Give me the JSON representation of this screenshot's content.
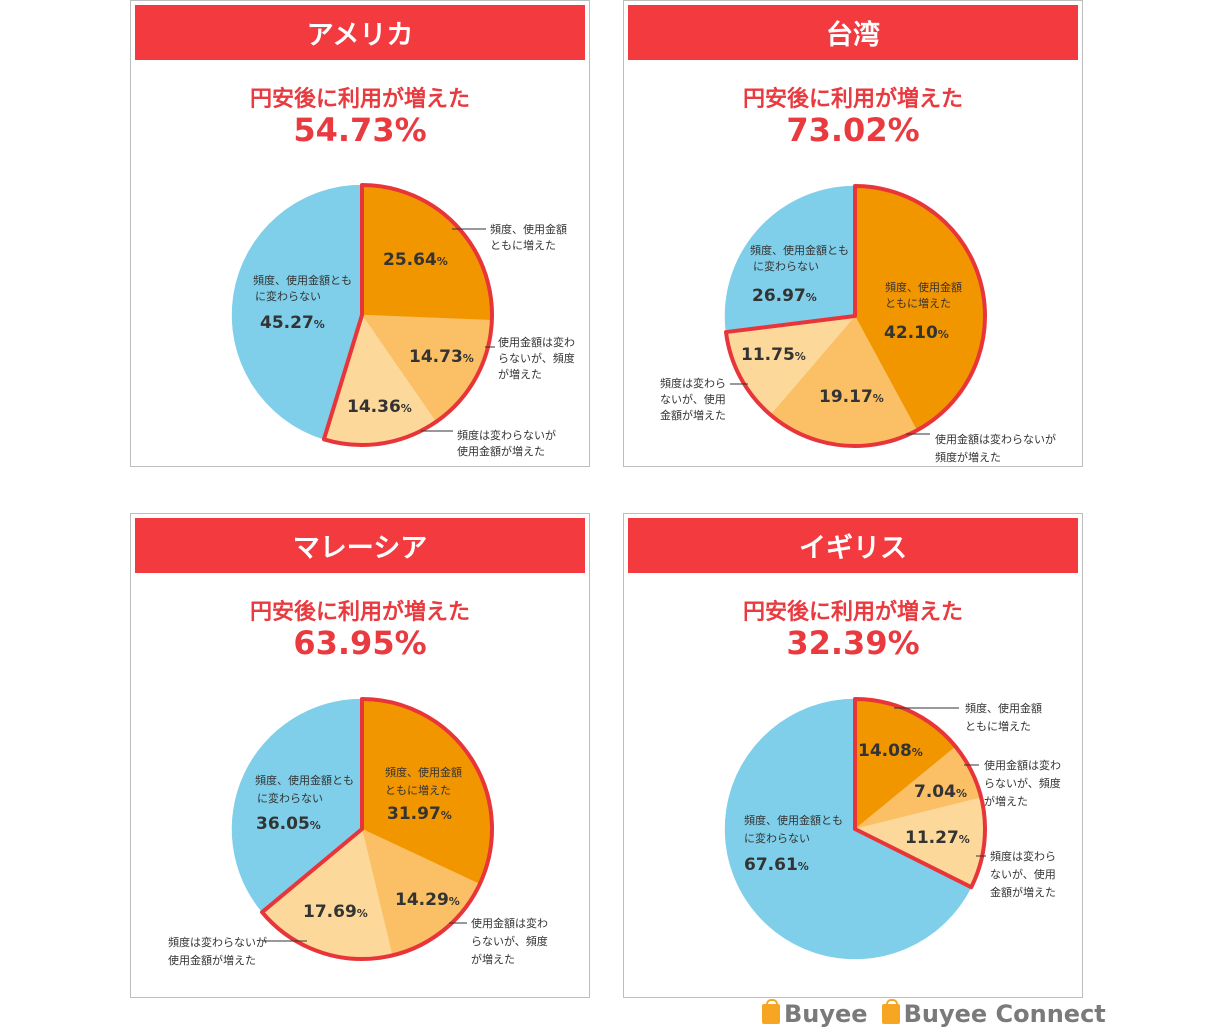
{
  "colors": {
    "header_red": "#f23a3f",
    "accent_red": "#e83a3f",
    "both_up": "#f29600",
    "amount_unchanged_freq_up": "#fbbf65",
    "freq_unchanged_amount_up": "#fcd89a",
    "no_change": "#7fcfea",
    "highlight_stroke": "#e8353a"
  },
  "panels": [
    {
      "country": "アメリカ",
      "headline": "円安後に利用が増えた",
      "increase_pct": "54.73%"
    },
    {
      "country": "台湾",
      "headline": "円安後に利用が増えた",
      "increase_pct": "73.02%"
    },
    {
      "country": "マレーシア",
      "headline": "円安後に利用が増えた",
      "increase_pct": "63.95%"
    },
    {
      "country": "イギリス",
      "headline": "円安後に利用が増えた",
      "increase_pct": "32.39%"
    }
  ],
  "chart_data": [
    {
      "type": "pie",
      "title": "アメリカ",
      "slices": [
        {
          "label": "頻度、使用金額ともに増えた",
          "value": 25.64
        },
        {
          "label": "使用金額は変わらないが、頻度が増えた",
          "value": 14.73
        },
        {
          "label": "頻度は変わらないが使用金額が増えた",
          "value": 14.36
        },
        {
          "label": "頻度、使用金額ともに変わらない",
          "value": 45.27
        }
      ]
    },
    {
      "type": "pie",
      "title": "台湾",
      "slices": [
        {
          "label": "頻度、使用金額ともに増えた",
          "value": 42.1
        },
        {
          "label": "使用金額は変わらないが頻度が増えた",
          "value": 19.17
        },
        {
          "label": "頻度は変わらないが、使用金額が増えた",
          "value": 11.75
        },
        {
          "label": "頻度、使用金額ともに変わらない",
          "value": 26.97
        }
      ]
    },
    {
      "type": "pie",
      "title": "マレーシア",
      "slices": [
        {
          "label": "頻度、使用金額ともに増えた",
          "value": 31.97
        },
        {
          "label": "使用金額は変わらないが、頻度が増えた",
          "value": 14.29
        },
        {
          "label": "頻度は変わらないが使用金額が増えた",
          "value": 17.69
        },
        {
          "label": "頻度、使用金額ともに変わらない",
          "value": 36.05
        }
      ]
    },
    {
      "type": "pie",
      "title": "イギリス",
      "slices": [
        {
          "label": "頻度、使用金額ともに増えた",
          "value": 14.08
        },
        {
          "label": "使用金額は変わらないが、頻度が増えた",
          "value": 7.04
        },
        {
          "label": "頻度は変わらないが、使用金額が増えた",
          "value": 11.27
        },
        {
          "label": "頻度、使用金額ともに変わらない",
          "value": 67.61
        }
      ]
    }
  ],
  "value_texts": [
    [
      "25.64",
      "14.73",
      "14.36",
      "45.27"
    ],
    [
      "42.10",
      "19.17",
      "11.75",
      "26.97"
    ],
    [
      "31.97",
      "14.29",
      "17.69",
      "36.05"
    ],
    [
      "14.08",
      "7.04",
      "11.27",
      "67.61"
    ]
  ],
  "percent_sign": "%",
  "logos": {
    "buyee": "Buyee",
    "buyee_connect": "Buyee Connect"
  }
}
